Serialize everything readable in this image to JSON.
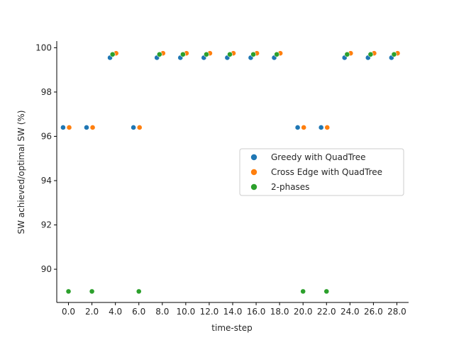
{
  "chart_data": {
    "type": "scatter",
    "title": "",
    "xlabel": "time-step",
    "ylabel": "SW achieved/optimal SW (%)",
    "categories": [
      "0.0",
      "2.0",
      "4.0",
      "6.0",
      "8.0",
      "10.0",
      "12.0",
      "14.0",
      "16.0",
      "18.0",
      "20.0",
      "22.0",
      "24.0",
      "26.0",
      "28.0"
    ],
    "ylim": [
      88.5,
      100.3
    ],
    "yticks": [
      90,
      92,
      94,
      96,
      98,
      100
    ],
    "grid": false,
    "legend_position": "center-right",
    "series": [
      {
        "name": "Greedy with QuadTree",
        "color": "#1f77b4",
        "values": [
          96.4,
          96.4,
          99.55,
          96.4,
          99.55,
          99.55,
          99.55,
          99.55,
          99.55,
          99.55,
          96.4,
          96.4,
          99.55,
          99.55,
          99.55
        ]
      },
      {
        "name": "Cross Edge with QuadTree",
        "color": "#ff7f0e",
        "values": [
          96.4,
          96.4,
          99.75,
          96.4,
          99.75,
          99.75,
          99.75,
          99.75,
          99.75,
          99.75,
          96.4,
          96.4,
          99.75,
          99.75,
          99.75
        ]
      },
      {
        "name": "2-phases",
        "color": "#2ca02c",
        "values": [
          89.0,
          89.0,
          99.7,
          89.0,
          99.7,
          99.7,
          99.7,
          99.7,
          99.7,
          99.7,
          89.0,
          89.0,
          99.7,
          99.7,
          99.7
        ]
      }
    ]
  }
}
